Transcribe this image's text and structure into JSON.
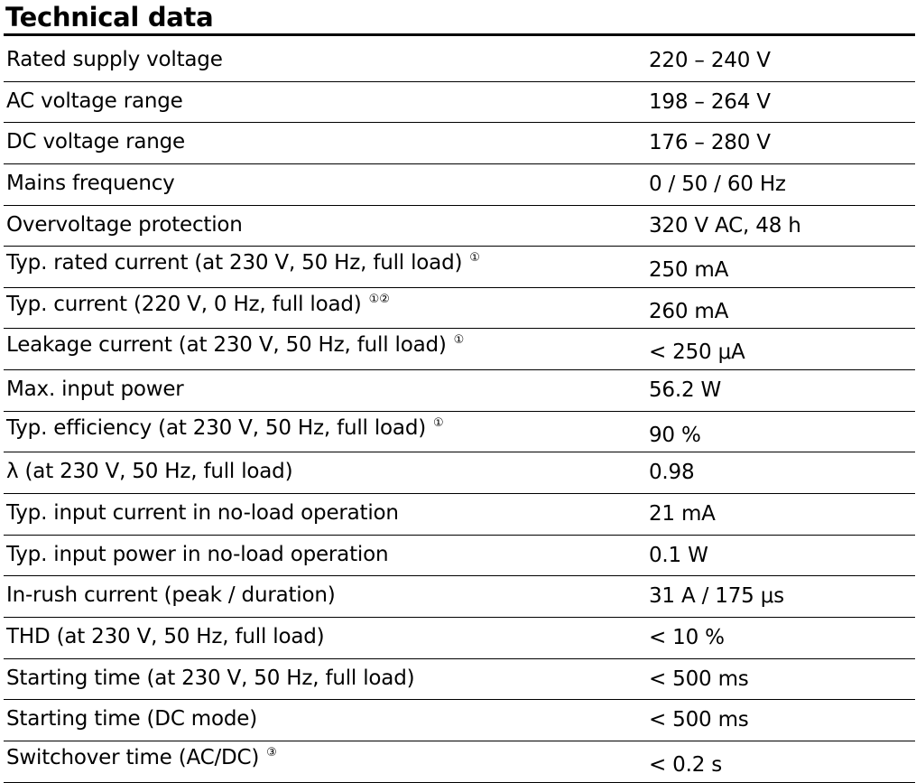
{
  "title": "Technical data",
  "rows": [
    {
      "label": "Rated supply voltage",
      "note": "",
      "value": "220 – 240 V"
    },
    {
      "label": "AC voltage range",
      "note": "",
      "value": "198 – 264 V"
    },
    {
      "label": "DC voltage range",
      "note": "",
      "value": "176 – 280 V"
    },
    {
      "label": "Mains frequency",
      "note": "",
      "value": "0 / 50 / 60 Hz"
    },
    {
      "label": "Overvoltage protection",
      "note": "",
      "value": "320 V AC, 48 h"
    },
    {
      "label": "Typ. rated current (at 230 V, 50 Hz, full load)",
      "note": "①",
      "value": "250 mA"
    },
    {
      "label": "Typ. current (220 V, 0 Hz, full load)",
      "note": "①②",
      "value": "260 mA"
    },
    {
      "label": "Leakage current (at 230 V, 50 Hz, full load)",
      "note": "①",
      "value": "< 250 μA"
    },
    {
      "label": "Max. input power",
      "note": "",
      "value": "56.2 W"
    },
    {
      "label": "Typ. efficiency (at 230 V, 50 Hz, full load)",
      "note": "①",
      "value": "90 %"
    },
    {
      "label": "λ (at 230 V, 50 Hz, full load)",
      "note": "",
      "value": "0.98"
    },
    {
      "label": "Typ. input current in no-load operation",
      "note": "",
      "value": "21 mA"
    },
    {
      "label": "Typ. input power in no-load operation",
      "note": "",
      "value": "0.1 W"
    },
    {
      "label": "In-rush current (peak / duration)",
      "note": "",
      "value": "31 A / 175 μs"
    },
    {
      "label": "THD (at 230 V, 50 Hz, full load)",
      "note": "",
      "value": "< 10 %"
    },
    {
      "label": "Starting time (at 230 V, 50 Hz, full load)",
      "note": "",
      "value": "< 500 ms"
    },
    {
      "label": "Starting time (DC mode)",
      "note": "",
      "value": "< 500 ms"
    },
    {
      "label": "Switchover time (AC/DC)",
      "note": "③",
      "value": "< 0.2 s"
    }
  ]
}
